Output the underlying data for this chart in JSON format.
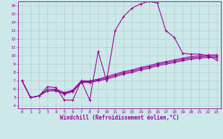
{
  "xlabel": "Windchill (Refroidissement éolien,°C)",
  "background_color": "#cce8e8",
  "line_color": "#990099",
  "grid_color": "#b0c8c8",
  "xlim": [
    -0.5,
    23.5
  ],
  "ylim": [
    3.7,
    16.5
  ],
  "xticks": [
    0,
    1,
    2,
    3,
    4,
    5,
    6,
    7,
    8,
    9,
    10,
    11,
    12,
    13,
    14,
    15,
    16,
    17,
    18,
    19,
    20,
    21,
    22,
    23
  ],
  "yticks": [
    4,
    5,
    6,
    7,
    8,
    9,
    10,
    11,
    12,
    13,
    14,
    15,
    16
  ],
  "line1_x": [
    0,
    1,
    2,
    3,
    4,
    5,
    6,
    7,
    8,
    9,
    10,
    11,
    12,
    13,
    14,
    15,
    16,
    17,
    18,
    19,
    20,
    21,
    22,
    23
  ],
  "line1_y": [
    7.0,
    5.0,
    5.2,
    6.3,
    6.2,
    4.7,
    4.7,
    7.0,
    4.7,
    10.5,
    7.0,
    13.0,
    14.7,
    15.7,
    16.2,
    16.5,
    16.3,
    13.0,
    12.2,
    10.3,
    10.2,
    10.2,
    10.0,
    9.5
  ],
  "line2_x": [
    0,
    1,
    2,
    3,
    4,
    5,
    6,
    7,
    8,
    9,
    10,
    11,
    12,
    13,
    14,
    15,
    16,
    17,
    18,
    19,
    20,
    21,
    22,
    23
  ],
  "line2_y": [
    7.0,
    5.0,
    5.2,
    5.8,
    5.8,
    5.4,
    5.7,
    6.8,
    6.8,
    7.0,
    7.2,
    7.5,
    7.8,
    8.0,
    8.3,
    8.5,
    8.8,
    9.0,
    9.2,
    9.4,
    9.6,
    9.7,
    9.8,
    9.8
  ],
  "line3_x": [
    0,
    1,
    2,
    3,
    4,
    5,
    6,
    7,
    8,
    9,
    10,
    11,
    12,
    13,
    14,
    15,
    16,
    17,
    18,
    19,
    20,
    21,
    22,
    23
  ],
  "line3_y": [
    7.0,
    5.0,
    5.2,
    5.8,
    5.9,
    5.5,
    5.8,
    6.9,
    6.9,
    7.1,
    7.35,
    7.65,
    7.95,
    8.15,
    8.45,
    8.65,
    8.95,
    9.15,
    9.35,
    9.55,
    9.75,
    9.85,
    9.95,
    9.95
  ],
  "line4_x": [
    0,
    1,
    2,
    3,
    4,
    5,
    6,
    7,
    8,
    9,
    10,
    11,
    12,
    13,
    14,
    15,
    16,
    17,
    18,
    19,
    20,
    21,
    22,
    23
  ],
  "line4_y": [
    7.0,
    5.0,
    5.2,
    6.0,
    6.0,
    5.6,
    5.9,
    7.0,
    7.0,
    7.2,
    7.5,
    7.8,
    8.1,
    8.3,
    8.6,
    8.8,
    9.1,
    9.3,
    9.5,
    9.7,
    9.9,
    10.0,
    10.1,
    10.1
  ],
  "marker": "+",
  "markersize": 3,
  "linewidth": 0.8,
  "tick_fontsize": 4.5,
  "label_fontsize": 5.5
}
